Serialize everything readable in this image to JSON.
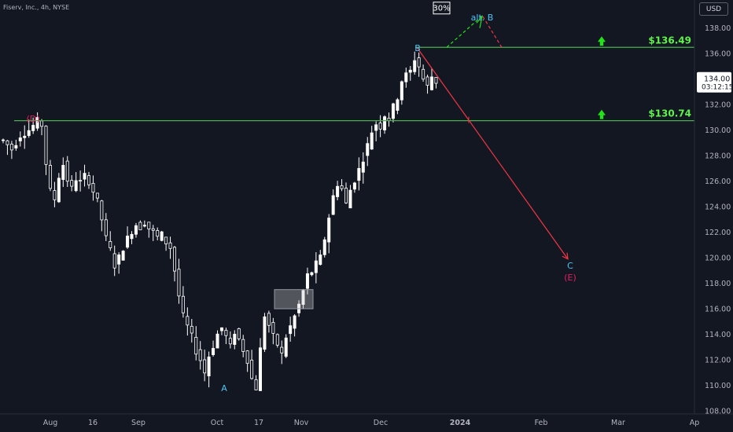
{
  "symbol_line": "Fiserv, Inc., 4h, NYSE",
  "currency_button": "USD",
  "colors": {
    "background": "#131722",
    "candle": "#ffffff",
    "level_line": "#4caf50",
    "level_label": "#5ff24a",
    "projection": "#f23645",
    "wave_label_blue": "#4fc3f7",
    "wave_label_magenta": "#e91e63"
  },
  "chart_data": {
    "type": "candlestick",
    "title": "",
    "y_axis": {
      "min": 107.2,
      "max": 140.2,
      "ticks": [
        "108.00",
        "110.00",
        "112.00",
        "114.00",
        "116.00",
        "118.00",
        "120.00",
        "122.00",
        "124.00",
        "126.00",
        "128.00",
        "130.00",
        "132.00",
        "134.00",
        "136.00",
        "138.00"
      ]
    },
    "x_axis": {
      "ticks": [
        "Aug",
        "16",
        "Sep",
        "Oct",
        "17",
        "Nov",
        "Dec",
        "2024",
        "Feb",
        "Mar",
        "Ap"
      ]
    },
    "last_price": {
      "value": "134.00",
      "countdown": "03:12:15"
    },
    "price_path": [
      [
        0,
        129.2
      ],
      [
        2,
        128.5
      ],
      [
        4,
        129.6
      ],
      [
        6,
        130.0
      ],
      [
        8,
        130.7
      ],
      [
        9,
        130.4
      ],
      [
        10,
        127.4
      ],
      [
        11,
        125.2
      ],
      [
        12,
        124.6
      ],
      [
        13,
        126.4
      ],
      [
        14,
        127.3
      ],
      [
        15,
        126.1
      ],
      [
        16,
        125.4
      ],
      [
        17,
        126.2
      ],
      [
        18,
        125.9
      ],
      [
        19,
        126.4
      ],
      [
        20,
        126.0
      ],
      [
        21,
        125.2
      ],
      [
        22,
        124.4
      ],
      [
        23,
        123.0
      ],
      [
        24,
        121.5
      ],
      [
        25,
        120.6
      ],
      [
        26,
        119.4
      ],
      [
        27,
        120.0
      ],
      [
        28,
        120.8
      ],
      [
        29,
        121.5
      ],
      [
        30,
        122.1
      ],
      [
        31,
        122.6
      ],
      [
        32,
        122.4
      ],
      [
        33,
        122.8
      ],
      [
        34,
        122.3
      ],
      [
        35,
        122.0
      ],
      [
        36,
        121.6
      ],
      [
        37,
        121.8
      ],
      [
        38,
        121.2
      ],
      [
        39,
        120.8
      ],
      [
        40,
        119.0
      ],
      [
        41,
        117.0
      ],
      [
        42,
        115.4
      ],
      [
        43,
        114.6
      ],
      [
        44,
        113.8
      ],
      [
        45,
        112.7
      ],
      [
        46,
        112.0
      ],
      [
        47,
        111.0
      ],
      [
        48,
        112.3
      ],
      [
        49,
        113.1
      ],
      [
        50,
        114.0
      ],
      [
        51,
        114.5
      ],
      [
        52,
        113.8
      ],
      [
        53,
        113.0
      ],
      [
        54,
        114.2
      ],
      [
        55,
        113.6
      ],
      [
        56,
        112.8
      ],
      [
        57,
        112.0
      ],
      [
        58,
        110.5
      ],
      [
        59,
        109.8
      ],
      [
        60,
        112.8
      ],
      [
        61,
        115.5
      ],
      [
        62,
        114.7
      ],
      [
        63,
        113.8
      ],
      [
        64,
        113.2
      ],
      [
        65,
        112.4
      ],
      [
        66,
        113.8
      ],
      [
        67,
        114.6
      ],
      [
        68,
        115.4
      ],
      [
        69,
        116.3
      ],
      [
        70,
        117.4
      ],
      [
        71,
        118.6
      ],
      [
        72,
        118.9
      ],
      [
        73,
        119.5
      ],
      [
        74,
        120.0
      ],
      [
        75,
        121.5
      ],
      [
        76,
        123.2
      ],
      [
        77,
        124.8
      ],
      [
        78,
        125.8
      ],
      [
        79,
        125.4
      ],
      [
        80,
        124.2
      ],
      [
        81,
        125.3
      ],
      [
        82,
        126.1
      ],
      [
        83,
        126.9
      ],
      [
        84,
        127.8
      ],
      [
        85,
        128.8
      ],
      [
        86,
        129.9
      ],
      [
        87,
        130.5
      ],
      [
        88,
        130.3
      ],
      [
        89,
        131.2
      ],
      [
        90,
        130.9
      ],
      [
        91,
        131.8
      ],
      [
        92,
        132.6
      ],
      [
        93,
        133.9
      ],
      [
        94,
        134.3
      ],
      [
        95,
        134.6
      ],
      [
        96,
        135.6
      ],
      [
        97,
        135.0
      ],
      [
        98,
        134.0
      ],
      [
        99,
        133.4
      ],
      [
        100,
        134.2
      ],
      [
        101,
        133.8
      ]
    ],
    "levels": [
      {
        "label": "$136.49",
        "value": 136.49
      },
      {
        "label": "$130.74",
        "value": 130.74
      }
    ],
    "gap_box": {
      "from": 116.0,
      "to": 117.5
    },
    "wave_labels": [
      {
        "text": "(D)",
        "price": 131.2,
        "color": "magenta"
      },
      {
        "text": "A",
        "price": 109.6,
        "color": "blue"
      },
      {
        "text": "B",
        "price": 137.0,
        "color": "blue"
      },
      {
        "text": "alt. B",
        "price": 139.6,
        "color": "blue"
      },
      {
        "text": "C",
        "price": 119.4,
        "color": "blue"
      },
      {
        "text": "(E)",
        "price": 118.4,
        "color": "magenta"
      }
    ],
    "probability_badge": "30%",
    "projection": {
      "from_price": 136.49,
      "to_price": 119.9
    }
  }
}
